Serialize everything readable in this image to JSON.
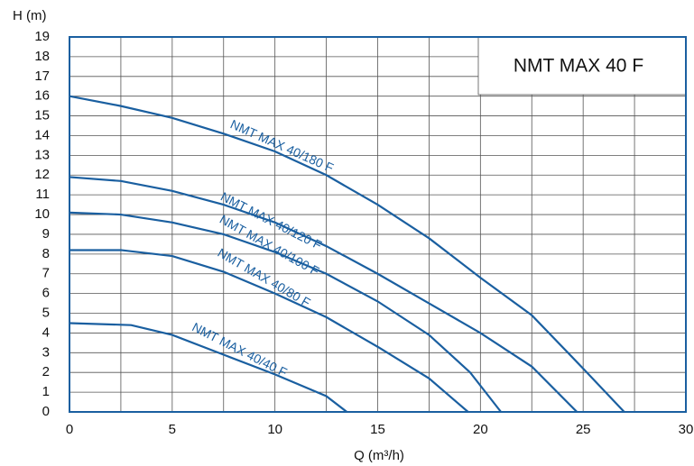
{
  "chart_data": {
    "type": "line",
    "title": "NMT MAX 40 F",
    "x_label": "Q (m³/h)",
    "y_label": "H (m)",
    "xlim": [
      0,
      30
    ],
    "xticks": [
      0,
      5,
      10,
      15,
      20,
      25,
      30
    ],
    "ylim": [
      0,
      19
    ],
    "yticks": [
      0,
      1,
      2,
      3,
      4,
      5,
      6,
      7,
      8,
      9,
      10,
      11,
      12,
      13,
      14,
      15,
      16,
      17,
      18,
      19
    ],
    "grid": true,
    "series": [
      {
        "name": "NMT MAX 40/180 F",
        "color": "#1a5fa0",
        "x": [
          0,
          2.5,
          5,
          7.5,
          10,
          12.5,
          15,
          17.5,
          20,
          22.5,
          25,
          27
        ],
        "values": [
          16,
          15.5,
          14.9,
          14.1,
          13.2,
          12,
          10.5,
          8.8,
          6.8,
          4.9,
          2.2,
          0
        ]
      },
      {
        "name": "NMT MAX 40/120 F",
        "color": "#1a5fa0",
        "x": [
          0,
          2.5,
          5,
          7.5,
          10,
          12.5,
          15,
          17.5,
          20,
          22.5,
          24.7
        ],
        "values": [
          11.9,
          11.7,
          11.2,
          10.5,
          9.6,
          8.4,
          7,
          5.5,
          4,
          2.3,
          0
        ]
      },
      {
        "name": "NMT MAX 40/100 F",
        "color": "#1a5fa0",
        "x": [
          0,
          2.5,
          5,
          7.5,
          10,
          12.5,
          15,
          17.5,
          19.5,
          21
        ],
        "values": [
          10.1,
          10,
          9.6,
          9,
          8.1,
          7,
          5.6,
          3.9,
          2,
          0
        ]
      },
      {
        "name": "NMT MAX 40/80 F",
        "color": "#1a5fa0",
        "x": [
          0,
          2.5,
          5,
          7.5,
          10,
          12.5,
          15,
          17.5,
          19.4
        ],
        "values": [
          8.2,
          8.2,
          7.9,
          7.1,
          6,
          4.8,
          3.3,
          1.7,
          0
        ]
      },
      {
        "name": "NMT MAX 40/40 F",
        "color": "#1a5fa0",
        "x": [
          0,
          3,
          5,
          7.5,
          10,
          12.5,
          13.5
        ],
        "values": [
          4.5,
          4.4,
          3.9,
          2.9,
          1.9,
          0.8,
          0
        ]
      }
    ]
  }
}
